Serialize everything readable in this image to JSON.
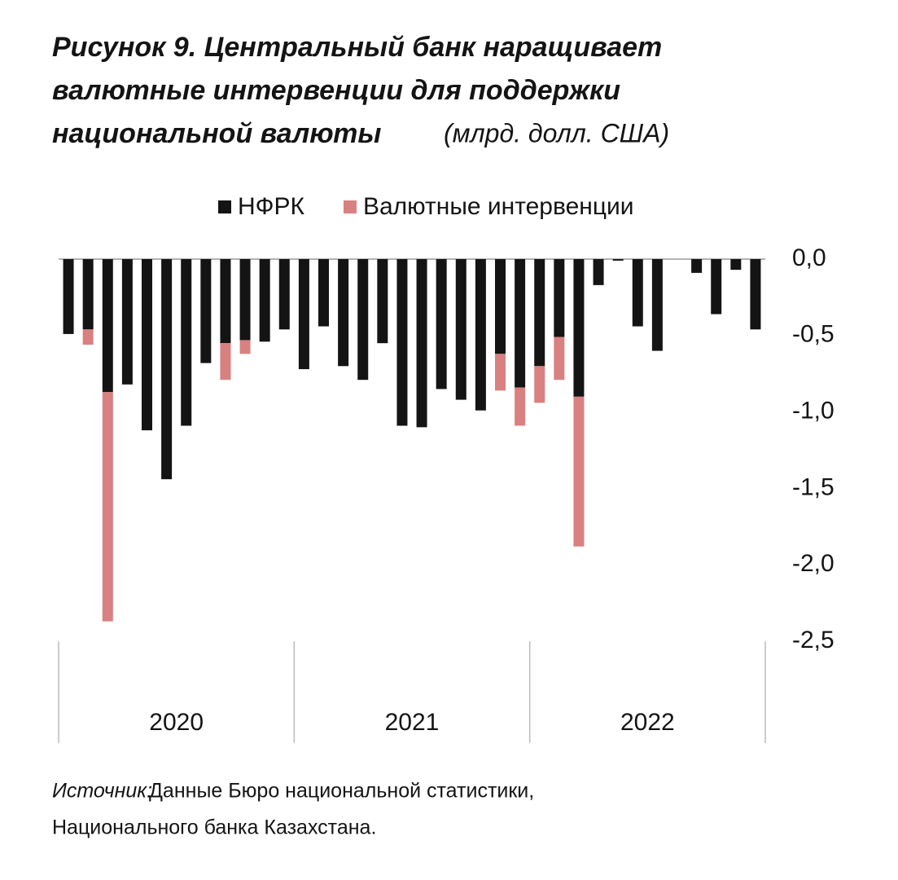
{
  "chart_data": {
    "type": "bar",
    "stacked": true,
    "title": [
      "Рисунок 9. Центральный банк наращивает",
      "валютные интервенции для поддержки",
      "национальной валюты"
    ],
    "subtitle": "(млрд. долл. США)",
    "categories": [
      null,
      null,
      null,
      null,
      null,
      null,
      null,
      null,
      null,
      null,
      null,
      null,
      null,
      null,
      null,
      null,
      null,
      null,
      null,
      null,
      null,
      null,
      null,
      null,
      null,
      null,
      null,
      null,
      null,
      null,
      null,
      null,
      null,
      null,
      null,
      null
    ],
    "group_labels": [
      "2020",
      "2021",
      "2022"
    ],
    "series": [
      {
        "name": "НФРК",
        "color": "#141414",
        "values": [
          -0.49,
          -0.46,
          -0.87,
          -0.82,
          -1.12,
          -1.44,
          -1.09,
          -0.68,
          -0.55,
          -0.53,
          -0.54,
          -0.46,
          -0.72,
          -0.44,
          -0.7,
          -0.79,
          -0.55,
          -1.09,
          -1.1,
          -0.85,
          -0.92,
          -0.99,
          -0.62,
          -0.84,
          -0.7,
          -0.51,
          -0.9,
          -0.17,
          -0.01,
          -0.44,
          -0.6,
          0,
          -0.09,
          -0.36,
          -0.07,
          -0.46
        ]
      },
      {
        "name": "Валютные интервенции",
        "color": "#d98080",
        "values": [
          0,
          -0.1,
          -1.5,
          0,
          0,
          0,
          0,
          0,
          -0.24,
          -0.09,
          0,
          0,
          0,
          0,
          0,
          0,
          0,
          0,
          0,
          0,
          0,
          0,
          -0.24,
          -0.25,
          -0.24,
          -0.28,
          -0.98,
          0,
          0,
          0,
          0,
          0,
          0,
          0,
          0,
          0
        ]
      }
    ],
    "ylim": [
      -2.5,
      0
    ],
    "yticks": [
      {
        "value": 0,
        "label": "0,0"
      },
      {
        "value": -0.5,
        "label": "-0,5"
      },
      {
        "value": -1,
        "label": "-1,0"
      },
      {
        "value": -1.5,
        "label": "-1,5"
      },
      {
        "value": -2,
        "label": "-2,0"
      },
      {
        "value": -2.5,
        "label": "-2,5"
      }
    ],
    "legend": "top",
    "source_label": "Источник:",
    "source": [
      "Данные Бюро национальной статистики,",
      "Национального банка Казахстана."
    ]
  }
}
